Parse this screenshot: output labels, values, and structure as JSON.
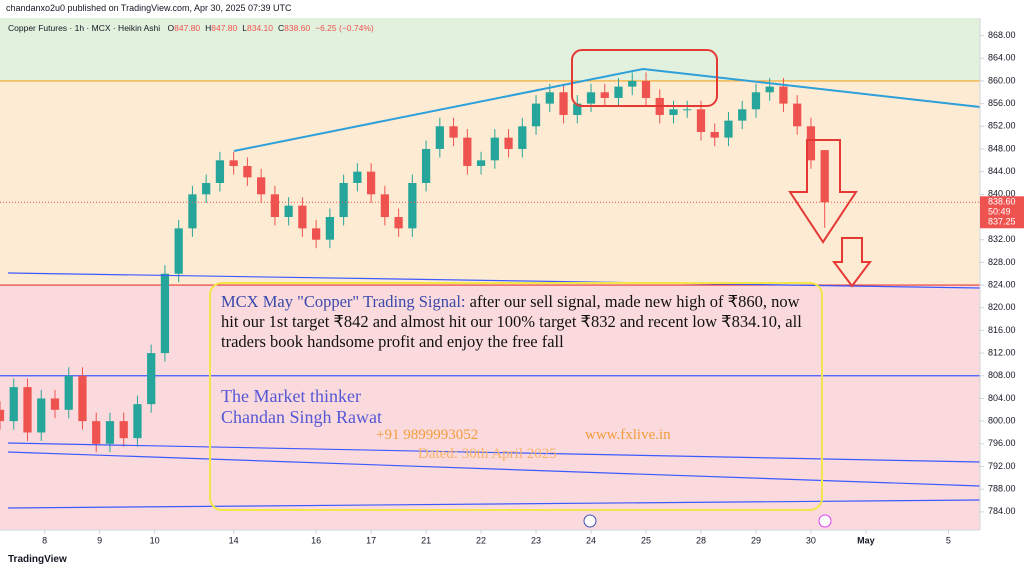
{
  "header": "chandanxo2u0 published on TradingView.com, Apr 30, 2025 07:39 UTC",
  "legend": {
    "symbol": "Copper Futures · 1h · MCX · Heikin Ashi",
    "ohlc": [
      {
        "label": "O",
        "value": "847.80"
      },
      {
        "label": "H",
        "value": "847.80"
      },
      {
        "label": "L",
        "value": "834.10"
      },
      {
        "label": "C",
        "value": "838.60"
      }
    ],
    "change": "−6.25 (−0.74%)"
  },
  "chart_data": {
    "type": "candlestick",
    "open": [
      802,
      800,
      806,
      798,
      804,
      802,
      808,
      800,
      796,
      800,
      797,
      803,
      812,
      826,
      834,
      840,
      842,
      846,
      845,
      843,
      840,
      836,
      838,
      834,
      832,
      836,
      842,
      844,
      840,
      836,
      834,
      842,
      848,
      852,
      850,
      845,
      846,
      850,
      848,
      852,
      856,
      858,
      854,
      856,
      858,
      857,
      859,
      860,
      857,
      854,
      855,
      855,
      851,
      850,
      853,
      855,
      858,
      859,
      856,
      852,
      847.8
    ],
    "high": [
      803.5,
      807.5,
      807.5,
      805.5,
      805.5,
      809.5,
      809.5,
      801.5,
      801.5,
      801.5,
      804.5,
      813.5,
      827.5,
      835.5,
      841.5,
      843.5,
      847.5,
      847.5,
      846.5,
      844.5,
      841.5,
      839.5,
      839.5,
      835.5,
      837.5,
      843.5,
      845.5,
      845.5,
      841.5,
      837.5,
      843.5,
      849.5,
      853.5,
      853.5,
      851.5,
      847.5,
      851.5,
      851.5,
      853.5,
      857.5,
      859.5,
      859.5,
      857.5,
      859.5,
      859.5,
      860.5,
      861.5,
      861.5,
      858.5,
      856.5,
      856.5,
      856.5,
      852.5,
      854.5,
      856.5,
      859.5,
      860.5,
      860.5,
      857.5,
      853.5,
      847.8
    ],
    "low": [
      798.5,
      798.5,
      796.5,
      796.5,
      800.5,
      800.5,
      798.5,
      794.5,
      794.5,
      795.5,
      795.5,
      801.5,
      810.5,
      824.5,
      832.5,
      838.5,
      840.5,
      843.5,
      841.5,
      838.5,
      834.5,
      834.5,
      832.5,
      830.5,
      830.5,
      834.5,
      840.5,
      838.5,
      834.5,
      832.5,
      832.5,
      840.5,
      846.5,
      848.5,
      843.5,
      843.5,
      844.5,
      846.5,
      846.5,
      850.5,
      854.5,
      852.5,
      852.5,
      854.5,
      855.5,
      855.5,
      857.5,
      855.5,
      852.5,
      852.5,
      853.5,
      849.5,
      848.5,
      848.5,
      851.5,
      853.5,
      856.5,
      854.5,
      850.5,
      844.5,
      834.1
    ],
    "close": [
      800,
      806,
      798,
      804,
      802,
      808,
      800,
      796,
      800,
      797,
      803,
      812,
      826,
      834,
      840,
      842,
      846,
      845,
      843,
      840,
      836,
      838,
      834,
      832,
      836,
      842,
      844,
      840,
      836,
      834,
      842,
      848,
      852,
      850,
      845,
      846,
      850,
      848,
      852,
      856,
      858,
      854,
      856,
      858,
      857,
      859,
      860,
      857,
      854,
      855,
      855,
      851,
      850,
      853,
      855,
      858,
      859,
      856,
      852,
      846,
      838.6
    ],
    "up_color": "#26a69a",
    "down_color": "#ef5350",
    "xlim": [
      0,
      71.3
    ],
    "xticks": [
      {
        "value": 3.25,
        "label": "8"
      },
      {
        "value": 7.25,
        "label": "9"
      },
      {
        "value": 11.25,
        "label": "10"
      },
      {
        "value": 17,
        "label": "14"
      },
      {
        "value": 23,
        "label": "16"
      },
      {
        "value": 27,
        "label": "17"
      },
      {
        "value": 31,
        "label": "21"
      },
      {
        "value": 35,
        "label": "22"
      },
      {
        "value": 39,
        "label": "23"
      },
      {
        "value": 43,
        "label": "24"
      },
      {
        "value": 47,
        "label": "25"
      },
      {
        "value": 51,
        "label": "28"
      },
      {
        "value": 55,
        "label": "29"
      },
      {
        "value": 59,
        "label": "30"
      },
      {
        "value": 63,
        "label": "May"
      },
      {
        "value": 69,
        "label": "5"
      }
    ],
    "ylim": [
      780.8,
      871.1
    ],
    "yticks": [
      {
        "value": 784,
        "label": "784.00"
      },
      {
        "value": 788,
        "label": "788.00"
      },
      {
        "value": 792,
        "label": "792.00"
      },
      {
        "value": 796,
        "label": "796.00"
      },
      {
        "value": 800,
        "label": "800.00"
      },
      {
        "value": 804,
        "label": "804.00"
      },
      {
        "value": 808,
        "label": "808.00"
      },
      {
        "value": 812,
        "label": "812.00"
      },
      {
        "value": 816,
        "label": "816.00"
      },
      {
        "value": 820,
        "label": "820.00"
      },
      {
        "value": 824,
        "label": "824.00"
      },
      {
        "value": 828,
        "label": "828.00"
      },
      {
        "value": 832,
        "label": "832.00"
      },
      {
        "value": 836,
        "label": "836.00"
      },
      {
        "value": 840,
        "label": "840.00"
      },
      {
        "value": 844,
        "label": "844.00"
      },
      {
        "value": 848,
        "label": "848.00"
      },
      {
        "value": 852,
        "label": "852.00"
      },
      {
        "value": 856,
        "label": "856.00"
      },
      {
        "value": 860,
        "label": "860.00"
      },
      {
        "value": 864,
        "label": "864.00"
      },
      {
        "value": 868,
        "label": "868.00"
      }
    ],
    "zones": [
      {
        "from": 860,
        "color": "#e2f1dd"
      },
      {
        "from": 824,
        "color": "#fdebd3"
      },
      {
        "from": 780.8,
        "color": "#fbdadd"
      }
    ],
    "hlines": [
      {
        "value": 860,
        "color": "#f5a623"
      },
      {
        "value": 824,
        "color": "#e53935"
      },
      {
        "value": 808,
        "color": "#3d5afe"
      }
    ],
    "price_tag": {
      "price": {
        "value": 838.6,
        "label": "838.60"
      },
      "countdown": "50:49",
      "prev": "837.25"
    },
    "annotation": {
      "lead": "MCX May \"Copper\" Trading Signal:",
      "body": " after our sell signal, made new high of ₹860, now hit our 1st target ₹842 and almost hit our 100% target ₹832 and recent low ₹834.10, all traders book handsome profit and enjoy the free fall",
      "line1": "The Market thinker",
      "line2": "Chandan Singh Rawat",
      "phone": "+91 9899993052",
      "site": "www.fxlive.in",
      "date": "Dated: 30th April 2025"
    }
  },
  "footer": "TradingView"
}
